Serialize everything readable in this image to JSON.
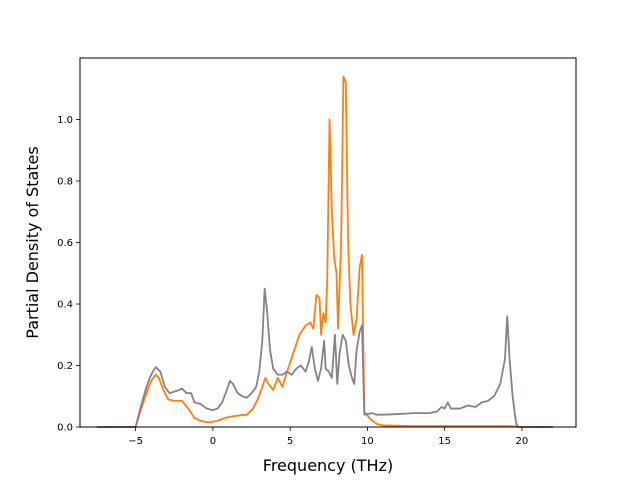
{
  "chart_data": {
    "type": "line",
    "title": "",
    "xlabel": "Frequency (THz)",
    "ylabel": "Partial Density of States",
    "xlim": [
      -8.6,
      23.5
    ],
    "ylim": [
      0.0,
      1.2
    ],
    "x_ticks": [
      "−5",
      "0",
      "5",
      "10",
      "15",
      "20"
    ],
    "y_ticks": [
      "0.0",
      "0.2",
      "0.4",
      "0.6",
      "0.8",
      "1.0"
    ],
    "x_tick_values": [
      -5,
      0,
      5,
      10,
      15,
      20
    ],
    "y_tick_values": [
      0.0,
      0.2,
      0.4,
      0.6,
      0.8,
      1.0
    ],
    "grid": false,
    "legend": "none",
    "series": [
      {
        "color": "#ff7f0e",
        "points": [
          [
            -7.5,
            0.0
          ],
          [
            -5.0,
            0.0
          ],
          [
            -4.7,
            0.05
          ],
          [
            -4.3,
            0.11
          ],
          [
            -4.0,
            0.15
          ],
          [
            -3.7,
            0.17
          ],
          [
            -3.5,
            0.16
          ],
          [
            -3.2,
            0.12
          ],
          [
            -2.9,
            0.09
          ],
          [
            -2.5,
            0.085
          ],
          [
            -2.0,
            0.085
          ],
          [
            -1.6,
            0.06
          ],
          [
            -1.2,
            0.03
          ],
          [
            -0.8,
            0.02
          ],
          [
            -0.3,
            0.015
          ],
          [
            0.3,
            0.02
          ],
          [
            0.8,
            0.03
          ],
          [
            1.3,
            0.035
          ],
          [
            1.8,
            0.038
          ],
          [
            2.2,
            0.04
          ],
          [
            2.6,
            0.06
          ],
          [
            2.9,
            0.09
          ],
          [
            3.2,
            0.13
          ],
          [
            3.4,
            0.16
          ],
          [
            3.6,
            0.14
          ],
          [
            3.9,
            0.12
          ],
          [
            4.2,
            0.16
          ],
          [
            4.5,
            0.13
          ],
          [
            4.8,
            0.18
          ],
          [
            5.2,
            0.24
          ],
          [
            5.6,
            0.3
          ],
          [
            6.0,
            0.33
          ],
          [
            6.3,
            0.34
          ],
          [
            6.5,
            0.32
          ],
          [
            6.7,
            0.43
          ],
          [
            6.9,
            0.42
          ],
          [
            7.0,
            0.3
          ],
          [
            7.15,
            0.37
          ],
          [
            7.3,
            0.34
          ],
          [
            7.4,
            0.48
          ],
          [
            7.55,
            1.0
          ],
          [
            7.7,
            0.7
          ],
          [
            7.85,
            0.55
          ],
          [
            8.0,
            0.5
          ],
          [
            8.1,
            0.32
          ],
          [
            8.3,
            0.6
          ],
          [
            8.45,
            1.14
          ],
          [
            8.6,
            1.12
          ],
          [
            8.75,
            0.6
          ],
          [
            8.9,
            0.4
          ],
          [
            9.1,
            0.3
          ],
          [
            9.3,
            0.35
          ],
          [
            9.5,
            0.52
          ],
          [
            9.65,
            0.56
          ],
          [
            9.8,
            0.05
          ],
          [
            10.2,
            0.025
          ],
          [
            10.6,
            0.01
          ],
          [
            11.0,
            0.005
          ],
          [
            13.0,
            0.003
          ],
          [
            15.0,
            0.003
          ],
          [
            17.0,
            0.003
          ],
          [
            19.0,
            0.003
          ],
          [
            19.6,
            0.002
          ],
          [
            20.0,
            0.0
          ],
          [
            22.0,
            0.0
          ]
        ]
      },
      {
        "color": "#8c7f87",
        "points": [
          [
            -7.5,
            0.0
          ],
          [
            -5.0,
            0.0
          ],
          [
            -4.7,
            0.06
          ],
          [
            -4.3,
            0.13
          ],
          [
            -4.0,
            0.17
          ],
          [
            -3.7,
            0.195
          ],
          [
            -3.4,
            0.18
          ],
          [
            -3.1,
            0.13
          ],
          [
            -2.8,
            0.11
          ],
          [
            -2.5,
            0.115
          ],
          [
            -2.2,
            0.12
          ],
          [
            -2.0,
            0.125
          ],
          [
            -1.7,
            0.11
          ],
          [
            -1.4,
            0.11
          ],
          [
            -1.2,
            0.08
          ],
          [
            -0.8,
            0.075
          ],
          [
            -0.4,
            0.06
          ],
          [
            0.0,
            0.055
          ],
          [
            0.3,
            0.06
          ],
          [
            0.6,
            0.08
          ],
          [
            0.9,
            0.12
          ],
          [
            1.1,
            0.15
          ],
          [
            1.3,
            0.14
          ],
          [
            1.6,
            0.11
          ],
          [
            1.9,
            0.1
          ],
          [
            2.2,
            0.095
          ],
          [
            2.5,
            0.11
          ],
          [
            2.8,
            0.13
          ],
          [
            3.0,
            0.18
          ],
          [
            3.2,
            0.28
          ],
          [
            3.35,
            0.45
          ],
          [
            3.5,
            0.38
          ],
          [
            3.7,
            0.25
          ],
          [
            3.9,
            0.19
          ],
          [
            4.2,
            0.17
          ],
          [
            4.5,
            0.17
          ],
          [
            4.8,
            0.18
          ],
          [
            5.1,
            0.17
          ],
          [
            5.4,
            0.19
          ],
          [
            5.7,
            0.2
          ],
          [
            6.0,
            0.18
          ],
          [
            6.2,
            0.21
          ],
          [
            6.4,
            0.26
          ],
          [
            6.6,
            0.19
          ],
          [
            6.8,
            0.15
          ],
          [
            7.0,
            0.19
          ],
          [
            7.2,
            0.28
          ],
          [
            7.3,
            0.19
          ],
          [
            7.5,
            0.18
          ],
          [
            7.7,
            0.16
          ],
          [
            7.9,
            0.3
          ],
          [
            8.05,
            0.14
          ],
          [
            8.2,
            0.24
          ],
          [
            8.4,
            0.3
          ],
          [
            8.6,
            0.28
          ],
          [
            8.8,
            0.2
          ],
          [
            9.0,
            0.16
          ],
          [
            9.15,
            0.14
          ],
          [
            9.3,
            0.25
          ],
          [
            9.5,
            0.31
          ],
          [
            9.65,
            0.33
          ],
          [
            9.8,
            0.04
          ],
          [
            10.3,
            0.045
          ],
          [
            10.6,
            0.04
          ],
          [
            11.0,
            0.04
          ],
          [
            12.0,
            0.042
          ],
          [
            13.0,
            0.045
          ],
          [
            14.0,
            0.045
          ],
          [
            14.5,
            0.05
          ],
          [
            14.8,
            0.065
          ],
          [
            15.0,
            0.06
          ],
          [
            15.2,
            0.08
          ],
          [
            15.4,
            0.06
          ],
          [
            16.0,
            0.06
          ],
          [
            16.5,
            0.07
          ],
          [
            17.0,
            0.065
          ],
          [
            17.4,
            0.08
          ],
          [
            17.8,
            0.085
          ],
          [
            18.2,
            0.1
          ],
          [
            18.6,
            0.14
          ],
          [
            18.9,
            0.22
          ],
          [
            19.05,
            0.36
          ],
          [
            19.2,
            0.22
          ],
          [
            19.4,
            0.1
          ],
          [
            19.6,
            0.02
          ],
          [
            19.7,
            0.0
          ],
          [
            22.0,
            0.0
          ]
        ]
      }
    ]
  }
}
